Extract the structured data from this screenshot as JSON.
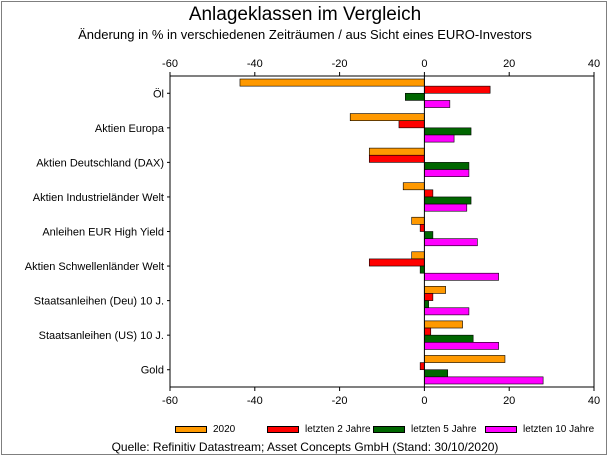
{
  "title": "Anlageklassen im Vergleich",
  "subtitle": "Änderung in % in verschiedenen Zeiträumen / aus Sicht eines EURO-Investors",
  "source": "Quelle: Refinitiv Datastream; Asset Concepts GmbH (Stand: 30/10/2020)",
  "chart_data": {
    "type": "bar",
    "orientation": "horizontal",
    "title": "Anlageklassen im Vergleich",
    "subtitle": "Änderung in % in verschiedenen Zeiträumen / aus Sicht eines EURO-Investors",
    "xlim": [
      -60,
      40
    ],
    "xticks": [
      -60,
      -40,
      -20,
      0,
      20,
      40
    ],
    "xaxis_top_and_bottom": true,
    "grid": false,
    "legend_position": "bottom",
    "categories": [
      "Öl",
      "Aktien Europa",
      "Aktien Deutschland (DAX)",
      "Aktien Industrieländer Welt",
      "Anleihen EUR High Yield",
      "Aktien Schwellenländer Welt",
      "Staatsanleihen (Deu) 10 J.",
      "Staatsanleihen (US) 10 J.",
      "Gold"
    ],
    "series": [
      {
        "name": "2020",
        "color": "#FF9900",
        "values": [
          -43.5,
          -17.5,
          -13,
          -5,
          -3,
          -3,
          5,
          9,
          19
        ]
      },
      {
        "name": "letzten 2 Jahre",
        "color": "#FF0000",
        "values": [
          15.5,
          -6,
          -13,
          2,
          -1,
          -13,
          2,
          1.5,
          -1
        ]
      },
      {
        "name": "letzten 5 Jahre",
        "color": "#006600",
        "values": [
          -4.5,
          11,
          10.5,
          11,
          2,
          -1,
          1,
          11.5,
          5.5
        ]
      },
      {
        "name": "letzten 10 Jahre",
        "color": "#FF00FF",
        "values": [
          6,
          7,
          10.5,
          10,
          12.5,
          17.5,
          10.5,
          17.5,
          28
        ]
      }
    ]
  }
}
